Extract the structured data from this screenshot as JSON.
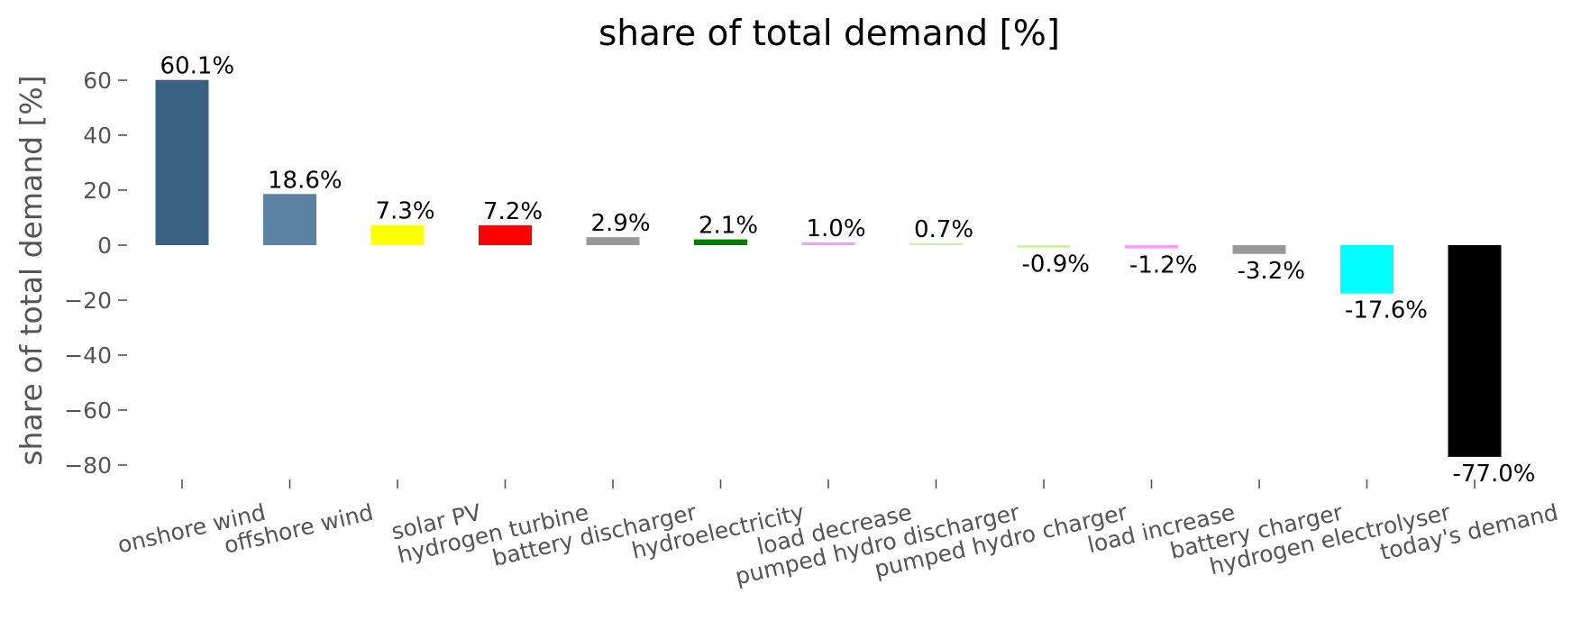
{
  "chart_data": {
    "type": "bar",
    "title": "share of total demand [%]",
    "ylabel": "share of total demand [%]",
    "xlabel": "",
    "ylim": [
      -85,
      65
    ],
    "yticks": [
      60,
      40,
      20,
      0,
      -20,
      -40,
      -60,
      -80
    ],
    "ytick_labels": [
      "60",
      "40",
      "20",
      "0",
      "−20",
      "−40",
      "−60",
      "−80"
    ],
    "grid": false,
    "categories": [
      "onshore wind",
      "offshore wind",
      "solar PV",
      "hydrogen turbine",
      "battery discharger",
      "hydroelectricity",
      "load decrease",
      "pumped hydro discharger",
      "pumped hydro charger",
      "load increase",
      "battery charger",
      "hydrogen electrolyser",
      "today's demand"
    ],
    "values": [
      60.1,
      18.6,
      7.3,
      7.2,
      2.9,
      2.1,
      1.0,
      0.7,
      -0.9,
      -1.2,
      -3.2,
      -17.6,
      -77.0
    ],
    "value_labels": [
      "60.1%",
      "18.6%",
      "7.3%",
      "7.2%",
      "2.9%",
      "2.1%",
      "1.0%",
      "0.7%",
      "-0.9%",
      "-1.2%",
      "-3.2%",
      "-17.6%",
      "-77.0%"
    ],
    "colors": [
      "#3b6182",
      "#5b82a3",
      "#ffff00",
      "#ff0000",
      "#999999",
      "#008000",
      "#ff99ff",
      "#ccf29f",
      "#ccf29f",
      "#ff99ff",
      "#999999",
      "#00ffff",
      "#000000"
    ]
  }
}
